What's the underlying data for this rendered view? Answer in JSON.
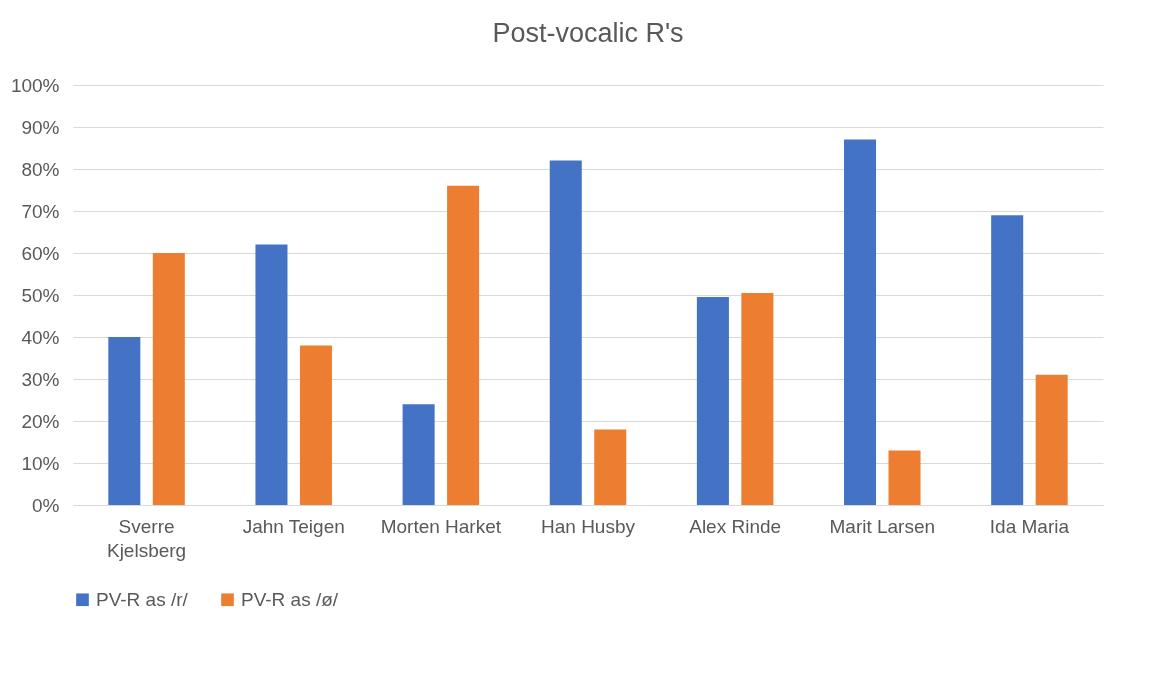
{
  "chart_data": {
    "type": "bar",
    "title": "Post-vocalic R's",
    "categories": [
      "Sverre Kjelsberg",
      "Jahn Teigen",
      "Morten Harket",
      "Han Husby",
      "Alex Rinde",
      "Marit Larsen",
      "Ida Maria"
    ],
    "series": [
      {
        "name": "PV-R as /r/",
        "color": "#4472c4",
        "values": [
          40,
          62,
          24,
          82,
          49.5,
          87,
          69
        ]
      },
      {
        "name": "PV-R as /ø/",
        "color": "#ed7d31",
        "values": [
          60,
          38,
          76,
          18,
          50.5,
          13,
          31
        ]
      }
    ],
    "ylim": [
      0,
      100
    ],
    "yticks": [
      {
        "value": 0,
        "label": "0%"
      },
      {
        "value": 10,
        "label": "10%"
      },
      {
        "value": 20,
        "label": "20%"
      },
      {
        "value": 30,
        "label": "30%"
      },
      {
        "value": 40,
        "label": "40%"
      },
      {
        "value": 50,
        "label": "50%"
      },
      {
        "value": 60,
        "label": "60%"
      },
      {
        "value": 70,
        "label": "70%"
      },
      {
        "value": 80,
        "label": "80%"
      },
      {
        "value": 90,
        "label": "90%"
      },
      {
        "value": 100,
        "label": "100%"
      }
    ],
    "grid": "y",
    "legend": "bottom"
  }
}
